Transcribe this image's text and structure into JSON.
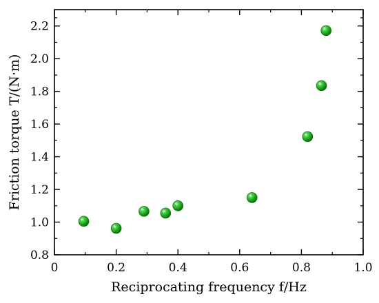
{
  "chart_data": {
    "type": "scatter",
    "xlabel": "Reciprocating  frequency f/Hz",
    "ylabel": "Friction torque T/(N·m)",
    "xlim": [
      0,
      1.0
    ],
    "ylim": [
      0.8,
      2.3
    ],
    "x_ticks": [
      0,
      0.2,
      0.4,
      0.6,
      0.8,
      1.0
    ],
    "x_tick_labels": [
      "0",
      "0.2",
      "0.4",
      "0.6",
      "0.8",
      "1.0"
    ],
    "y_ticks": [
      0.8,
      1.0,
      1.2,
      1.4,
      1.6,
      1.8,
      2.0,
      2.2
    ],
    "y_tick_labels": [
      "0.8",
      "1.0",
      "1.2",
      "1.4",
      "1.6",
      "1.8",
      "2.0",
      "2.2"
    ],
    "grid": false,
    "marker_color": "#129612",
    "series": [
      {
        "x": [
          0.095,
          0.2,
          0.29,
          0.36,
          0.4,
          0.64,
          0.82,
          0.865,
          0.88
        ],
        "y": [
          1.005,
          0.962,
          1.066,
          1.055,
          1.1,
          1.15,
          1.523,
          1.835,
          2.172
        ]
      }
    ]
  }
}
